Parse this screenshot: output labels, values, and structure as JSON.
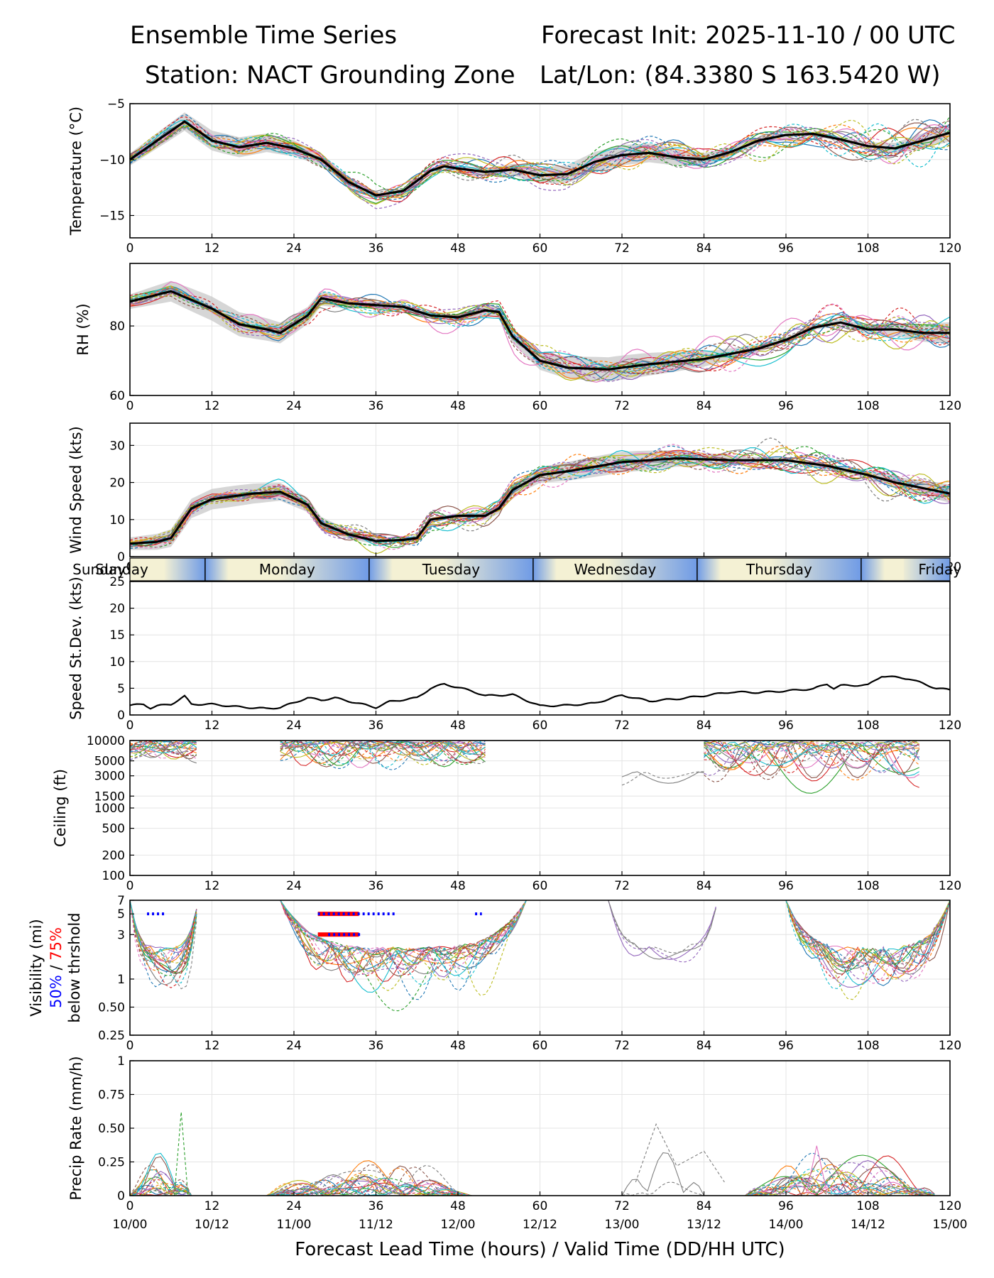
{
  "header": {
    "title_left": "Ensemble Time Series",
    "title_right": "Forecast Init: 2025-11-10 / 00 UTC",
    "station": "Station: NACT Grounding Zone",
    "latlon": "Lat/Lon: (84.3380 S 163.5420 W)"
  },
  "colors": {
    "members": [
      "#1f77b4",
      "#ff7f0e",
      "#2ca02c",
      "#d62728",
      "#9467bd",
      "#8c564b",
      "#e377c2",
      "#7f7f7f",
      "#bcbd22",
      "#17becf"
    ],
    "mean": "#000000",
    "spread": "#c8c8c8",
    "vis50": "#0000ff",
    "vis75": "#ff0000",
    "day_blue": "#6f9be6",
    "day_cream": "#f4f1d4"
  },
  "chart_data": {
    "type": "line",
    "x": [
      0,
      120
    ],
    "xticks": [
      0,
      12,
      24,
      36,
      48,
      60,
      72,
      84,
      96,
      108,
      120
    ],
    "xlabel": "Forecast Lead Time (hours) / Valid Time (DD/HH UTC)",
    "valid_time_labels": [
      "10/00",
      "10/12",
      "11/00",
      "11/12",
      "12/00",
      "12/12",
      "13/00",
      "13/12",
      "14/00",
      "14/12",
      "15/00"
    ],
    "days": [
      "Sunday",
      "Monday",
      "Tuesday",
      "Wednesday",
      "Thursday",
      "Friday"
    ],
    "day_boundaries_hours": [
      11,
      35,
      59,
      83,
      107
    ],
    "panels": [
      {
        "key": "temperature",
        "ylabel": "Temperature (°C)",
        "ylim": [
          -17,
          -5
        ],
        "yticks": [
          -15,
          -10,
          -5
        ],
        "scale": "linear",
        "mean": [
          [
            0,
            -10
          ],
          [
            4,
            -8.3
          ],
          [
            8,
            -6.6
          ],
          [
            12,
            -8.3
          ],
          [
            16,
            -8.9
          ],
          [
            20,
            -8.5
          ],
          [
            24,
            -9
          ],
          [
            28,
            -10
          ],
          [
            32,
            -12
          ],
          [
            36,
            -13.2
          ],
          [
            40,
            -12.8
          ],
          [
            44,
            -11
          ],
          [
            46,
            -10.6
          ],
          [
            48,
            -10.8
          ],
          [
            52,
            -11.1
          ],
          [
            56,
            -10.9
          ],
          [
            60,
            -11.4
          ],
          [
            64,
            -11.3
          ],
          [
            68,
            -10.2
          ],
          [
            72,
            -9.6
          ],
          [
            76,
            -9.4
          ],
          [
            80,
            -9.8
          ],
          [
            84,
            -10
          ],
          [
            88,
            -9.3
          ],
          [
            92,
            -8.3
          ],
          [
            96,
            -7.8
          ],
          [
            100,
            -7.7
          ],
          [
            104,
            -8.2
          ],
          [
            108,
            -8.8
          ],
          [
            112,
            -9
          ],
          [
            116,
            -8.3
          ],
          [
            120,
            -7.6
          ]
        ],
        "spread": 0.9
      },
      {
        "key": "rh",
        "ylabel": "RH (%)",
        "ylim": [
          60,
          98
        ],
        "yticks": [
          60,
          80
        ],
        "scale": "linear",
        "mean": [
          [
            0,
            87
          ],
          [
            6,
            90
          ],
          [
            12,
            85
          ],
          [
            16,
            80.5
          ],
          [
            20,
            79
          ],
          [
            22,
            78
          ],
          [
            26,
            83
          ],
          [
            28,
            88
          ],
          [
            32,
            86.5
          ],
          [
            36,
            86
          ],
          [
            40,
            85.5
          ],
          [
            44,
            83
          ],
          [
            48,
            82.5
          ],
          [
            52,
            84.5
          ],
          [
            54,
            84
          ],
          [
            56,
            77
          ],
          [
            60,
            70
          ],
          [
            64,
            68
          ],
          [
            70,
            67.5
          ],
          [
            76,
            69
          ],
          [
            84,
            70.5
          ],
          [
            92,
            73.5
          ],
          [
            96,
            76
          ],
          [
            100,
            79.5
          ],
          [
            104,
            81
          ],
          [
            108,
            79
          ],
          [
            112,
            79
          ],
          [
            116,
            78
          ],
          [
            120,
            78
          ]
        ],
        "spread": 3.5
      },
      {
        "key": "wind",
        "ylabel": "Wind Speed (kts)",
        "ylim": [
          0,
          36
        ],
        "yticks": [
          0,
          10,
          20,
          30
        ],
        "scale": "linear",
        "mean": [
          [
            0,
            3.5
          ],
          [
            4,
            4
          ],
          [
            6,
            5
          ],
          [
            9,
            13
          ],
          [
            12,
            15.5
          ],
          [
            18,
            17
          ],
          [
            22,
            17.5
          ],
          [
            26,
            14
          ],
          [
            28,
            9
          ],
          [
            32,
            6
          ],
          [
            36,
            4.2
          ],
          [
            40,
            4.5
          ],
          [
            42,
            5
          ],
          [
            44,
            10
          ],
          [
            48,
            11
          ],
          [
            52,
            11
          ],
          [
            54,
            13
          ],
          [
            56,
            18
          ],
          [
            60,
            22
          ],
          [
            64,
            23
          ],
          [
            72,
            25.5
          ],
          [
            80,
            26.5
          ],
          [
            88,
            26
          ],
          [
            96,
            26
          ],
          [
            102,
            24.5
          ],
          [
            108,
            22
          ],
          [
            112,
            20
          ],
          [
            116,
            18.5
          ],
          [
            120,
            17
          ]
        ],
        "spread": 2.8
      },
      {
        "key": "speed_sd",
        "ylabel": "Speed St.Dev. (kts)",
        "ylim": [
          0,
          25
        ],
        "yticks": [
          0,
          5,
          10,
          15,
          20,
          25
        ],
        "scale": "linear",
        "mean": [
          [
            0,
            1.8
          ],
          [
            2,
            2
          ],
          [
            3,
            1.3
          ],
          [
            4,
            1.7
          ],
          [
            6,
            2
          ],
          [
            8,
            3.5
          ],
          [
            9,
            2
          ],
          [
            12,
            2
          ],
          [
            16,
            1.5
          ],
          [
            20,
            1.2
          ],
          [
            22,
            1.4
          ],
          [
            26,
            3.2
          ],
          [
            28,
            2.8
          ],
          [
            30,
            3.2
          ],
          [
            34,
            2
          ],
          [
            36,
            1.4
          ],
          [
            38,
            2.5
          ],
          [
            42,
            3.2
          ],
          [
            44,
            5
          ],
          [
            46,
            5.8
          ],
          [
            50,
            4.5
          ],
          [
            52,
            3.6
          ],
          [
            56,
            3.8
          ],
          [
            60,
            1.7
          ],
          [
            64,
            1.8
          ],
          [
            68,
            2.2
          ],
          [
            72,
            3.7
          ],
          [
            76,
            2.6
          ],
          [
            80,
            3
          ],
          [
            84,
            3.6
          ],
          [
            88,
            4.3
          ],
          [
            92,
            4.2
          ],
          [
            96,
            4.5
          ],
          [
            100,
            4.9
          ],
          [
            102,
            5.8
          ],
          [
            103,
            5
          ],
          [
            104,
            5.5
          ],
          [
            108,
            5.6
          ],
          [
            110,
            7.3
          ],
          [
            114,
            6.8
          ],
          [
            118,
            5
          ],
          [
            120,
            4.7
          ]
        ]
      },
      {
        "key": "ceiling",
        "ylabel": "Ceiling (ft)",
        "scale": "log",
        "ylim": [
          100,
          10000
        ],
        "yticks": [
          100,
          200,
          500,
          1000,
          1500,
          3000,
          5000,
          10000
        ]
      },
      {
        "key": "visibility",
        "ylabel_top": "Visibility (mi)",
        "ylabel_50": "50%",
        "ylabel_sep": " / ",
        "ylabel_75": "75%",
        "ylabel_bottom": "below thrshold",
        "scale": "log",
        "ylim": [
          0.25,
          7
        ],
        "yticks": [
          0.25,
          0.5,
          1,
          3,
          5,
          7
        ],
        "below_50pct_segments": [
          [
            2.5,
            5
          ],
          [
            27.5,
            39
          ],
          [
            50.5,
            51.5
          ]
        ],
        "below_75pct_segments": [
          [
            27.5,
            33.5
          ]
        ],
        "thresholds": [
          5,
          3
        ]
      },
      {
        "key": "precip",
        "ylabel": "Precip Rate (mm/h)",
        "ylim": [
          0,
          1
        ],
        "yticks": [
          0,
          0.25,
          0.5,
          0.75,
          1
        ],
        "scale": "linear"
      }
    ]
  }
}
